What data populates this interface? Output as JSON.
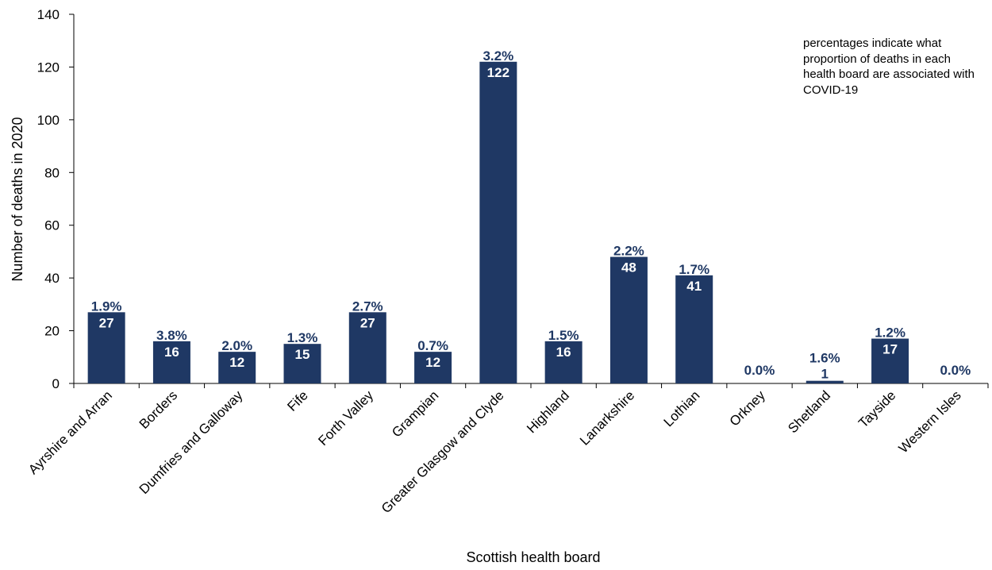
{
  "chart_data": {
    "type": "bar",
    "title": "",
    "xlabel": "Scottish health board",
    "ylabel": "Number of deaths in 2020",
    "ylim": [
      0,
      140
    ],
    "yticks": [
      0,
      20,
      40,
      60,
      80,
      100,
      120,
      140
    ],
    "grid": false,
    "categories": [
      "Ayrshire and Arran",
      "Borders",
      "Dumfries and Galloway",
      "Fife",
      "Forth Valley",
      "Grampian",
      "Greater Glasgow and Clyde",
      "Highland",
      "Lanarkshire",
      "Lothian",
      "Orkney",
      "Shetland",
      "Tayside",
      "Western Isles"
    ],
    "values": [
      27,
      16,
      12,
      15,
      27,
      12,
      122,
      16,
      48,
      41,
      0,
      1,
      17,
      0
    ],
    "percent_labels": [
      "1.9%",
      "3.8%",
      "2.0%",
      "1.3%",
      "2.7%",
      "0.7%",
      "3.2%",
      "1.5%",
      "2.2%",
      "1.7%",
      "0.0%",
      "1.6%",
      "1.2%",
      "0.0%"
    ],
    "annotation": "percentages indicate what proportion of deaths in each health board are associated with COVID-19",
    "colors": {
      "bar": "#1f3864",
      "label": "#1f3864"
    }
  }
}
